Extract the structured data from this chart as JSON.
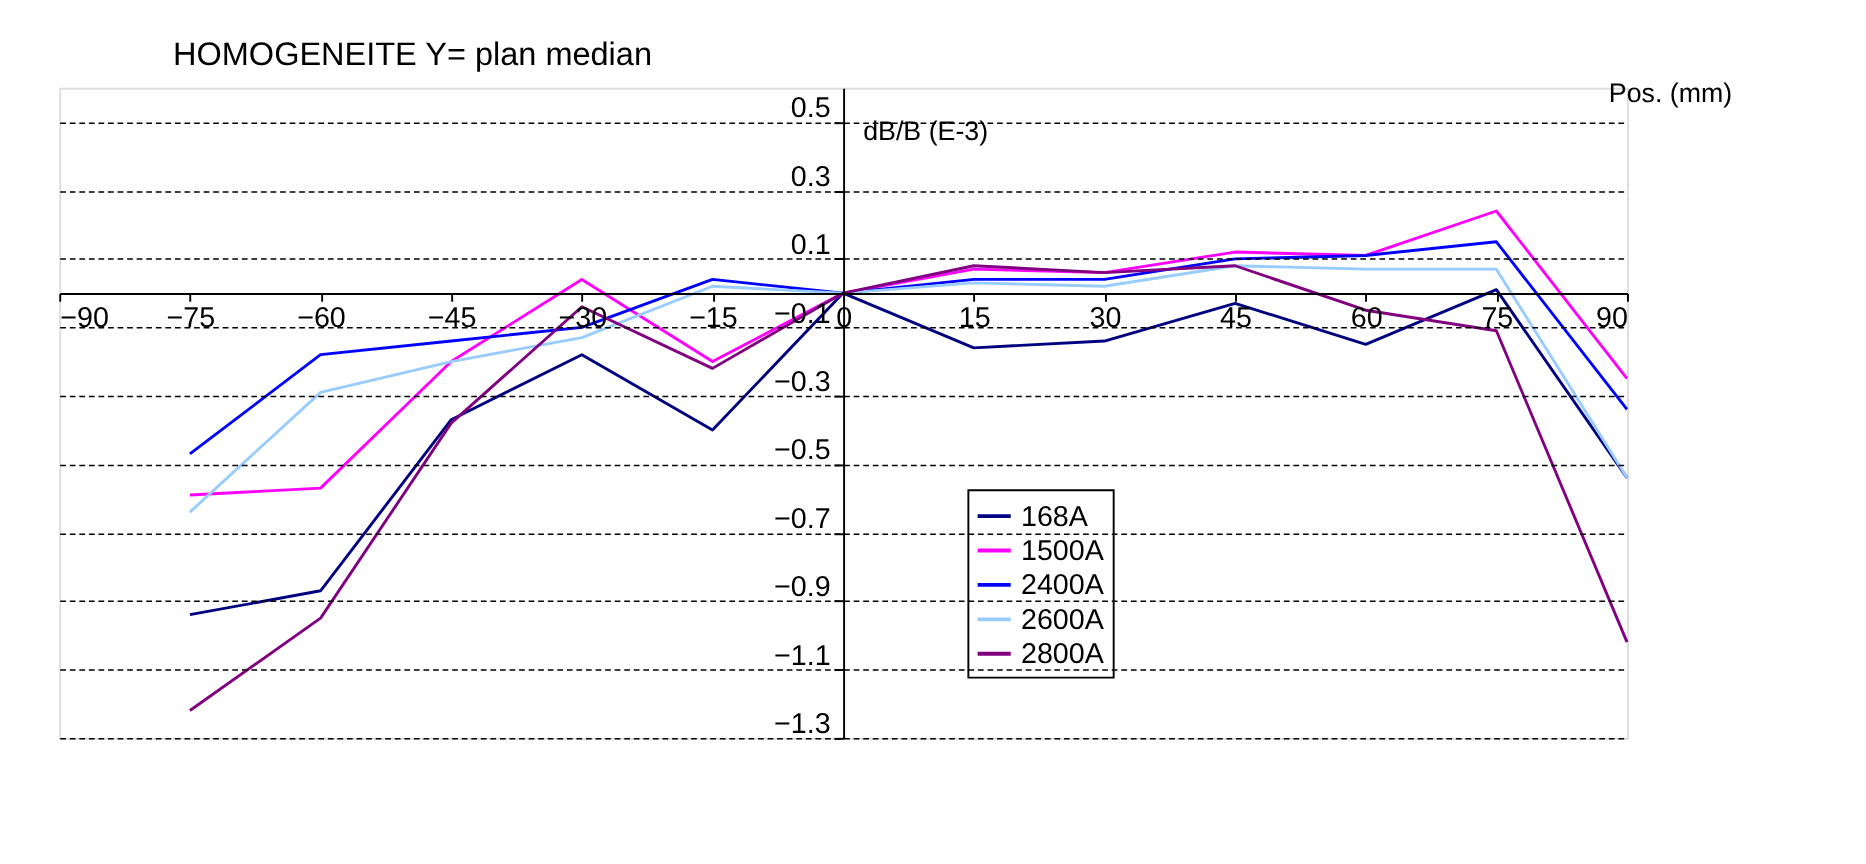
{
  "chart_data": {
    "type": "line",
    "title": "HOMOGENEITE  Y= plan median",
    "xlabel": "Pos. (mm)",
    "ylabel": "dB/B (E-3)",
    "x": [
      -75,
      -60,
      -45,
      -30,
      -15,
      0,
      15,
      30,
      45,
      60,
      75,
      90
    ],
    "series": [
      {
        "name": "168A",
        "color": "#000080",
        "values": [
          -0.94,
          -0.87,
          -0.37,
          -0.18,
          -0.4,
          0,
          -0.16,
          -0.14,
          -0.03,
          -0.15,
          0.01,
          -0.54
        ]
      },
      {
        "name": "1500A",
        "color": "#ff00ff",
        "values": [
          -0.59,
          -0.57,
          -0.2,
          0.04,
          -0.2,
          0,
          0.07,
          0.06,
          0.12,
          0.11,
          0.24,
          -0.25
        ]
      },
      {
        "name": "2400A",
        "color": "#0000ff",
        "values": [
          -0.47,
          -0.18,
          -0.14,
          -0.1,
          0.04,
          0,
          0.04,
          0.04,
          0.1,
          0.11,
          0.15,
          -0.34
        ]
      },
      {
        "name": "2600A",
        "color": "#99ccff",
        "values": [
          -0.64,
          -0.29,
          -0.2,
          -0.13,
          0.02,
          0,
          0.03,
          0.02,
          0.08,
          0.07,
          0.07,
          -0.54
        ]
      },
      {
        "name": "2800A",
        "color": "#800080",
        "values": [
          -1.22,
          -0.95,
          -0.38,
          -0.04,
          -0.22,
          0,
          0.08,
          0.06,
          0.08,
          -0.05,
          -0.11,
          -1.02
        ]
      }
    ],
    "xlim": [
      -90,
      90
    ],
    "xticks": [
      -90,
      -75,
      -60,
      -45,
      -30,
      -15,
      0,
      15,
      30,
      45,
      60,
      75,
      90
    ],
    "ylim": [
      -1.3,
      0.6
    ],
    "yticks": [
      0.5,
      0.3,
      0.1,
      -0.1,
      -0.3,
      -0.5,
      -0.7,
      -0.9,
      -1.1,
      -1.3
    ],
    "grid": "y",
    "legend": "bottom",
    "marker": "none",
    "line_style": "solid"
  }
}
